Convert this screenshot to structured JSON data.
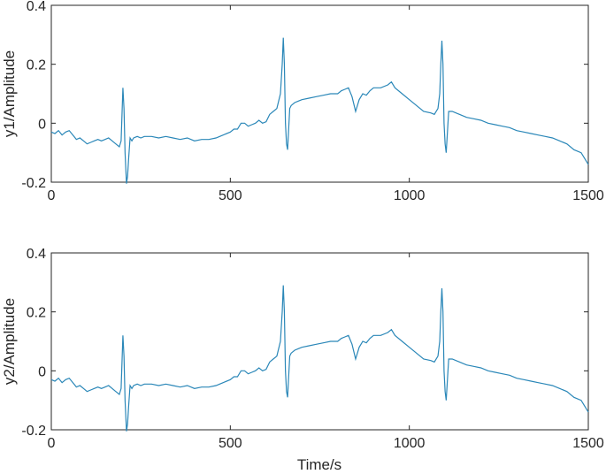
{
  "chart_data": [
    {
      "type": "line",
      "xlabel": "",
      "ylabel": "y1/Amplitude",
      "xlim": [
        0,
        1500
      ],
      "ylim": [
        -0.2,
        0.4
      ],
      "xticks": [
        0,
        500,
        1000,
        1500
      ],
      "yticks": [
        -0.2,
        0,
        0.2,
        0.4
      ],
      "xtick_labels": [
        "0",
        "500",
        "1000",
        "1500"
      ],
      "ytick_labels": [
        "-0.2",
        "0",
        "0.2",
        "0.4"
      ],
      "grid": false,
      "color": "#2a87b8",
      "series": [
        {
          "x": [
            0,
            10,
            20,
            30,
            40,
            50,
            60,
            70,
            80,
            90,
            100,
            110,
            120,
            130,
            140,
            150,
            160,
            170,
            180,
            190,
            195,
            200,
            203,
            206,
            210,
            213,
            216,
            220,
            225,
            230,
            240,
            250,
            260,
            280,
            300,
            320,
            340,
            360,
            380,
            400,
            420,
            440,
            460,
            480,
            500,
            510,
            520,
            530,
            540,
            550,
            560,
            570,
            580,
            590,
            600,
            610,
            620,
            630,
            640,
            645,
            648,
            651,
            654,
            657,
            660,
            663,
            666,
            670,
            680,
            690,
            700,
            720,
            740,
            760,
            780,
            800,
            810,
            820,
            830,
            840,
            850,
            860,
            870,
            880,
            890,
            900,
            920,
            940,
            950,
            960,
            980,
            1000,
            1020,
            1040,
            1060,
            1070,
            1080,
            1085,
            1088,
            1091,
            1094,
            1097,
            1100,
            1103,
            1106,
            1110,
            1120,
            1140,
            1160,
            1180,
            1200,
            1220,
            1240,
            1260,
            1280,
            1300,
            1320,
            1340,
            1360,
            1380,
            1400,
            1420,
            1440,
            1460,
            1480,
            1490,
            1500
          ],
          "y": [
            -0.03,
            -0.035,
            -0.025,
            -0.04,
            -0.03,
            -0.025,
            -0.04,
            -0.055,
            -0.05,
            -0.06,
            -0.07,
            -0.065,
            -0.06,
            -0.055,
            -0.06,
            -0.055,
            -0.05,
            -0.06,
            -0.07,
            -0.08,
            -0.06,
            0.12,
            0.05,
            -0.1,
            -0.21,
            -0.18,
            -0.12,
            -0.05,
            -0.06,
            -0.05,
            -0.045,
            -0.05,
            -0.045,
            -0.045,
            -0.05,
            -0.045,
            -0.05,
            -0.055,
            -0.05,
            -0.06,
            -0.055,
            -0.055,
            -0.05,
            -0.04,
            -0.03,
            -0.02,
            -0.02,
            0.0,
            0.0,
            -0.01,
            -0.005,
            0.0,
            0.01,
            0.0,
            0.005,
            0.03,
            0.04,
            0.05,
            0.1,
            0.2,
            0.29,
            0.2,
            0.0,
            -0.07,
            -0.09,
            -0.02,
            0.05,
            0.06,
            0.07,
            0.075,
            0.08,
            0.085,
            0.09,
            0.095,
            0.1,
            0.1,
            0.11,
            0.115,
            0.12,
            0.09,
            0.04,
            0.08,
            0.1,
            0.095,
            0.11,
            0.12,
            0.12,
            0.13,
            0.14,
            0.12,
            0.1,
            0.08,
            0.06,
            0.04,
            0.035,
            0.03,
            0.05,
            0.1,
            0.2,
            0.28,
            0.2,
            0.0,
            -0.07,
            -0.1,
            -0.04,
            0.04,
            0.04,
            0.03,
            0.02,
            0.015,
            0.01,
            0.0,
            -0.005,
            -0.01,
            -0.015,
            -0.025,
            -0.03,
            -0.035,
            -0.04,
            -0.045,
            -0.05,
            -0.06,
            -0.07,
            -0.09,
            -0.1,
            -0.12,
            -0.14
          ]
        }
      ]
    },
    {
      "type": "line",
      "xlabel": "Time/s",
      "ylabel": "y2/Amplitude",
      "xlim": [
        0,
        1500
      ],
      "ylim": [
        -0.2,
        0.4
      ],
      "xticks": [
        0,
        500,
        1000,
        1500
      ],
      "yticks": [
        -0.2,
        0,
        0.2,
        0.4
      ],
      "xtick_labels": [
        "0",
        "500",
        "1000",
        "1500"
      ],
      "ytick_labels": [
        "-0.2",
        "0",
        "0.2",
        "0.4"
      ],
      "grid": false,
      "color": "#2a87b8",
      "series": [
        {
          "x": [
            0,
            10,
            20,
            30,
            40,
            50,
            60,
            70,
            80,
            90,
            100,
            110,
            120,
            130,
            140,
            150,
            160,
            170,
            180,
            190,
            195,
            200,
            203,
            206,
            210,
            213,
            216,
            220,
            225,
            230,
            240,
            250,
            260,
            280,
            300,
            320,
            340,
            360,
            380,
            400,
            420,
            440,
            460,
            480,
            500,
            510,
            520,
            530,
            540,
            550,
            560,
            570,
            580,
            590,
            600,
            610,
            620,
            630,
            640,
            645,
            648,
            651,
            654,
            657,
            660,
            663,
            666,
            670,
            680,
            690,
            700,
            720,
            740,
            760,
            780,
            800,
            810,
            820,
            830,
            840,
            850,
            860,
            870,
            880,
            890,
            900,
            920,
            940,
            950,
            960,
            980,
            1000,
            1020,
            1040,
            1060,
            1070,
            1080,
            1085,
            1088,
            1091,
            1094,
            1097,
            1100,
            1103,
            1106,
            1110,
            1120,
            1140,
            1160,
            1180,
            1200,
            1220,
            1240,
            1260,
            1280,
            1300,
            1320,
            1340,
            1360,
            1380,
            1400,
            1420,
            1440,
            1460,
            1480,
            1490,
            1500
          ],
          "y": [
            -0.03,
            -0.035,
            -0.025,
            -0.04,
            -0.03,
            -0.025,
            -0.04,
            -0.055,
            -0.05,
            -0.06,
            -0.07,
            -0.065,
            -0.06,
            -0.055,
            -0.06,
            -0.055,
            -0.05,
            -0.06,
            -0.07,
            -0.08,
            -0.06,
            0.12,
            0.05,
            -0.1,
            -0.21,
            -0.18,
            -0.12,
            -0.05,
            -0.06,
            -0.05,
            -0.045,
            -0.05,
            -0.045,
            -0.045,
            -0.05,
            -0.045,
            -0.05,
            -0.055,
            -0.05,
            -0.06,
            -0.055,
            -0.055,
            -0.05,
            -0.04,
            -0.03,
            -0.02,
            -0.02,
            0.0,
            0.0,
            -0.01,
            -0.005,
            0.0,
            0.01,
            0.0,
            0.005,
            0.03,
            0.04,
            0.05,
            0.1,
            0.2,
            0.29,
            0.2,
            0.0,
            -0.07,
            -0.09,
            -0.02,
            0.05,
            0.06,
            0.07,
            0.075,
            0.08,
            0.085,
            0.09,
            0.095,
            0.1,
            0.1,
            0.11,
            0.115,
            0.12,
            0.09,
            0.04,
            0.08,
            0.1,
            0.095,
            0.11,
            0.12,
            0.12,
            0.13,
            0.14,
            0.12,
            0.1,
            0.08,
            0.06,
            0.04,
            0.035,
            0.03,
            0.05,
            0.1,
            0.2,
            0.28,
            0.2,
            0.0,
            -0.07,
            -0.1,
            -0.04,
            0.04,
            0.04,
            0.03,
            0.02,
            0.015,
            0.01,
            0.0,
            -0.005,
            -0.01,
            -0.015,
            -0.025,
            -0.03,
            -0.035,
            -0.04,
            -0.045,
            -0.05,
            -0.06,
            -0.07,
            -0.09,
            -0.1,
            -0.12,
            -0.14
          ]
        }
      ]
    }
  ]
}
